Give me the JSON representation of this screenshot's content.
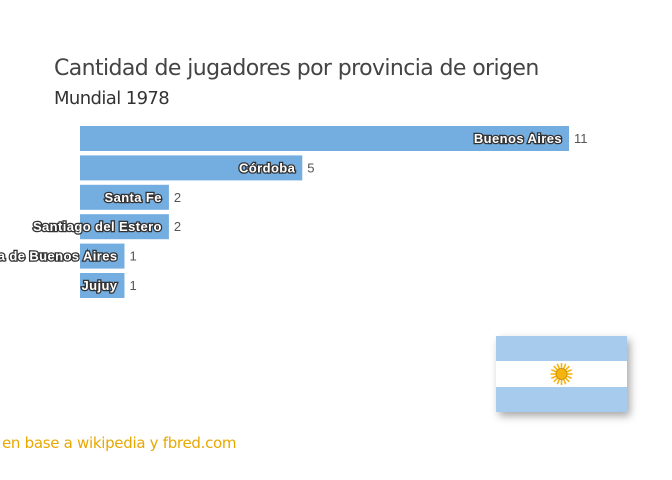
{
  "chart_data": {
    "type": "bar",
    "orientation": "horizontal",
    "title": "Cantidad de jugadores por provincia de origen",
    "subtitle": "Mundial 1978",
    "categories": [
      "Buenos Aires",
      "Córdoba",
      "Santa Fe",
      "Santiago del Estero",
      "Provincia de Buenos Aires",
      "Jujuy"
    ],
    "values": [
      11,
      5,
      2,
      2,
      1,
      1
    ],
    "xlim": [
      0,
      11
    ],
    "grid": false,
    "bar_color": "#74ade0"
  },
  "footer": {
    "source": "en base a wikipedia y fbred.com"
  },
  "flag": {
    "icon": "argentina-flag-icon",
    "colors": [
      "#74acdf",
      "#ffffff",
      "#f6b40e"
    ]
  }
}
